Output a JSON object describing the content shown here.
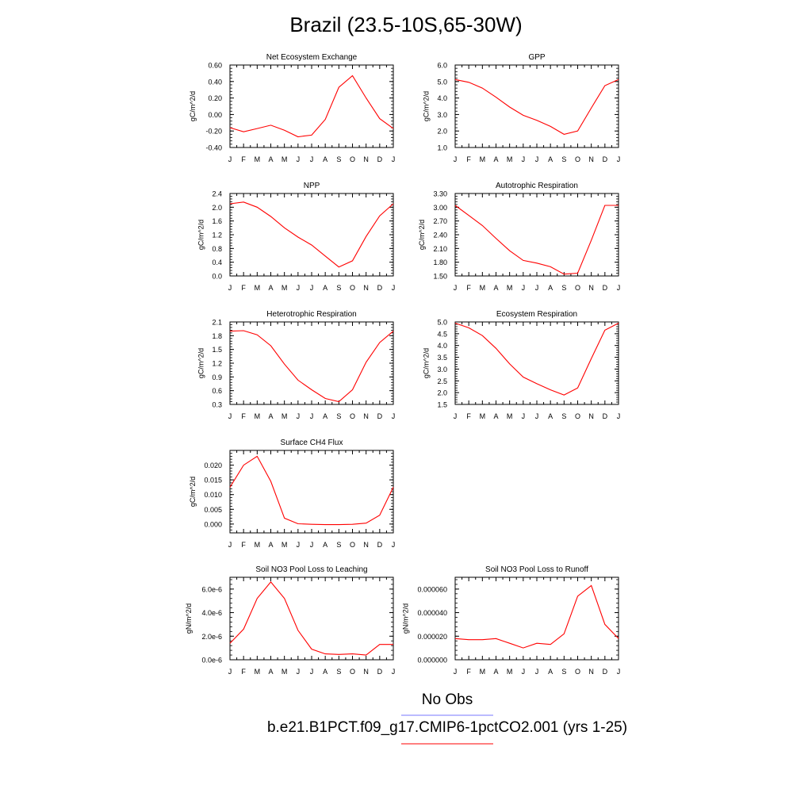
{
  "title": "Brazil (23.5-10S,65-30W)",
  "month_labels": [
    "J",
    "F",
    "M",
    "A",
    "M",
    "J",
    "J",
    "A",
    "S",
    "O",
    "N",
    "D",
    "J"
  ],
  "legend": {
    "items": [
      {
        "label": "No Obs",
        "color": "#7777ff"
      },
      {
        "label": "b.e21.B1PCT.f09_g17.CMIP6-1pctCO2.001 (yrs 1-25)",
        "color": "#ff0000"
      }
    ]
  },
  "chart_data": [
    {
      "type": "line",
      "title": "Net Ecosystem Exchange",
      "ylabel": "gC/m^2/d",
      "ylim": [
        -0.4,
        0.6
      ],
      "yticks": [
        "-0.40",
        "-0.20",
        "0.00",
        "0.20",
        "0.40",
        "0.60"
      ],
      "series": [
        {
          "color": "#ff0000",
          "values": [
            -0.16,
            -0.21,
            -0.17,
            -0.13,
            -0.19,
            -0.27,
            -0.25,
            -0.06,
            0.33,
            0.47,
            0.2,
            -0.05,
            -0.17
          ]
        }
      ]
    },
    {
      "type": "line",
      "title": "GPP",
      "ylabel": "gC/m^2/d",
      "ylim": [
        1.0,
        6.0
      ],
      "yticks": [
        "1.0",
        "2.0",
        "3.0",
        "4.0",
        "5.0",
        "6.0"
      ],
      "series": [
        {
          "color": "#ff0000",
          "values": [
            5.12,
            4.95,
            4.6,
            4.05,
            3.45,
            2.95,
            2.65,
            2.28,
            1.8,
            2.0,
            3.4,
            4.75,
            5.12
          ]
        }
      ]
    },
    {
      "type": "line",
      "title": "NPP",
      "ylabel": "gC/m^2/d",
      "ylim": [
        0.0,
        2.4
      ],
      "yticks": [
        "0.0",
        "0.4",
        "0.8",
        "1.2",
        "1.6",
        "2.0",
        "2.4"
      ],
      "series": [
        {
          "color": "#ff0000",
          "values": [
            2.1,
            2.15,
            2.0,
            1.73,
            1.4,
            1.13,
            0.9,
            0.58,
            0.26,
            0.44,
            1.15,
            1.75,
            2.1
          ]
        }
      ]
    },
    {
      "type": "line",
      "title": "Autotrophic Respiration",
      "ylabel": "gC/m^2/d",
      "ylim": [
        1.5,
        3.3
      ],
      "yticks": [
        "1.50",
        "1.80",
        "2.10",
        "2.40",
        "2.70",
        "3.00",
        "3.30"
      ],
      "series": [
        {
          "color": "#ff0000",
          "values": [
            3.04,
            2.82,
            2.6,
            2.32,
            2.05,
            1.84,
            1.78,
            1.7,
            1.54,
            1.56,
            2.28,
            3.04,
            3.04
          ]
        }
      ]
    },
    {
      "type": "line",
      "title": "Heterotrophic Respiration",
      "ylabel": "gC/m^2/d",
      "ylim": [
        0.3,
        2.1
      ],
      "yticks": [
        "0.3",
        "0.6",
        "0.9",
        "1.2",
        "1.5",
        "1.8",
        "2.1"
      ],
      "series": [
        {
          "color": "#ff0000",
          "values": [
            1.9,
            1.91,
            1.82,
            1.58,
            1.18,
            0.83,
            0.62,
            0.43,
            0.36,
            0.62,
            1.22,
            1.65,
            1.9
          ]
        }
      ]
    },
    {
      "type": "line",
      "title": "Ecosystem Respiration",
      "ylabel": "gC/m^2/d",
      "ylim": [
        1.5,
        5.0
      ],
      "yticks": [
        "1.5",
        "2.0",
        "2.5",
        "3.0",
        "3.5",
        "4.0",
        "4.5",
        "5.0"
      ],
      "series": [
        {
          "color": "#ff0000",
          "values": [
            4.95,
            4.75,
            4.42,
            3.88,
            3.22,
            2.66,
            2.38,
            2.12,
            1.9,
            2.2,
            3.45,
            4.65,
            4.95
          ]
        }
      ]
    },
    {
      "type": "line",
      "title": "Surface CH4 Flux",
      "ylabel": "gC/m^2/d",
      "ylim": [
        -0.003,
        0.025
      ],
      "yticks": [
        "0.000",
        "0.005",
        "0.010",
        "0.015",
        "0.020"
      ],
      "ytick_values": [
        0.0,
        0.005,
        0.01,
        0.015,
        0.02
      ],
      "series": [
        {
          "color": "#ff0000",
          "values": [
            0.0125,
            0.02,
            0.023,
            0.0145,
            0.002,
            0.0001,
            -0.0001,
            -0.0002,
            -0.0002,
            -0.0001,
            0.0003,
            0.003,
            0.0125
          ]
        }
      ]
    },
    {
      "type": "line",
      "title": "Soil NO3 Pool Loss to Leaching",
      "ylabel": "gN/m^2/d",
      "ylim": [
        0.0,
        7e-06
      ],
      "yticks": [
        "0.0e-6",
        "2.0e-6",
        "4.0e-6",
        "6.0e-6"
      ],
      "ytick_values": [
        0.0,
        2e-06,
        4e-06,
        6e-06
      ],
      "series": [
        {
          "color": "#ff0000",
          "values": [
            1.4e-06,
            2.6e-06,
            5.2e-06,
            6.6e-06,
            5.2e-06,
            2.5e-06,
            9e-07,
            5e-07,
            4.5e-07,
            5e-07,
            4e-07,
            1.3e-06,
            1.3e-06
          ]
        }
      ]
    },
    {
      "type": "line",
      "title": "Soil NO3 Pool Loss to Runoff",
      "ylabel": "gN/m^2/d",
      "ylim": [
        0.0,
        7e-05
      ],
      "yticks": [
        "0.000000",
        "0.000020",
        "0.000040",
        "0.000060"
      ],
      "ytick_values": [
        0.0,
        2e-05,
        4e-05,
        6e-05
      ],
      "series": [
        {
          "color": "#ff0000",
          "values": [
            1.8e-05,
            1.7e-05,
            1.7e-05,
            1.8e-05,
            1.4e-05,
            1e-05,
            1.4e-05,
            1.3e-05,
            2.2e-05,
            5.4e-05,
            6.3e-05,
            3e-05,
            1.8e-05
          ]
        }
      ]
    }
  ]
}
